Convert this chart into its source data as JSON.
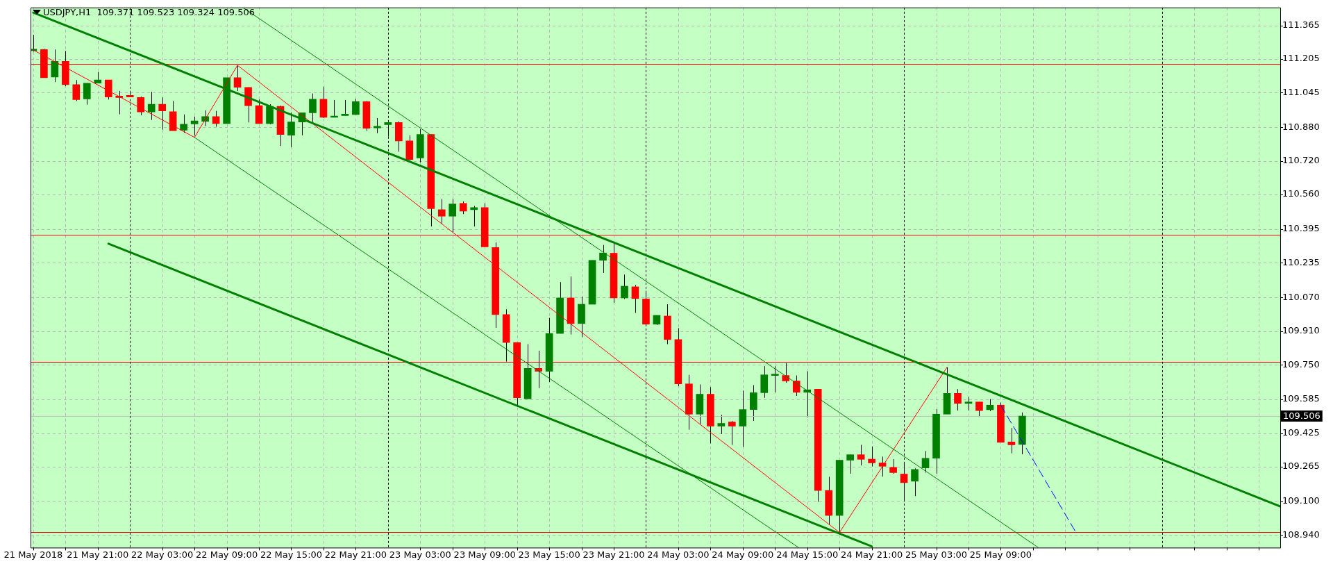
{
  "chart_data": {
    "type": "candlestick",
    "title": "USDJPY,H1  109.371 109.523 109.324 109.506",
    "x": [
      "2018-05-21T15:00",
      "2018-05-21T16:00",
      "2018-05-21T17:00",
      "2018-05-21T18:00",
      "2018-05-21T19:00",
      "2018-05-21T20:00",
      "2018-05-21T21:00",
      "2018-05-21T22:00",
      "2018-05-21T23:00",
      "2018-05-22T00:00",
      "2018-05-22T01:00",
      "2018-05-22T02:00",
      "2018-05-22T03:00",
      "2018-05-22T04:00",
      "2018-05-22T05:00",
      "2018-05-22T06:00",
      "2018-05-22T07:00",
      "2018-05-22T08:00",
      "2018-05-22T09:00",
      "2018-05-22T10:00",
      "2018-05-22T11:00",
      "2018-05-22T12:00",
      "2018-05-22T13:00",
      "2018-05-22T14:00",
      "2018-05-22T15:00",
      "2018-05-22T16:00",
      "2018-05-22T17:00",
      "2018-05-22T18:00",
      "2018-05-22T19:00",
      "2018-05-22T20:00",
      "2018-05-22T21:00",
      "2018-05-22T22:00",
      "2018-05-22T23:00",
      "2018-05-23T00:00",
      "2018-05-23T01:00",
      "2018-05-23T02:00",
      "2018-05-23T03:00",
      "2018-05-23T04:00",
      "2018-05-23T05:00",
      "2018-05-23T06:00",
      "2018-05-23T07:00",
      "2018-05-23T08:00",
      "2018-05-23T09:00",
      "2018-05-23T10:00",
      "2018-05-23T11:00",
      "2018-05-23T12:00",
      "2018-05-23T13:00",
      "2018-05-23T14:00",
      "2018-05-23T15:00",
      "2018-05-23T16:00",
      "2018-05-23T17:00",
      "2018-05-23T18:00",
      "2018-05-23T19:00",
      "2018-05-23T20:00",
      "2018-05-23T21:00",
      "2018-05-23T22:00",
      "2018-05-23T23:00",
      "2018-05-24T00:00",
      "2018-05-24T01:00",
      "2018-05-24T02:00",
      "2018-05-24T03:00",
      "2018-05-24T04:00",
      "2018-05-24T05:00",
      "2018-05-24T06:00",
      "2018-05-24T07:00",
      "2018-05-24T08:00",
      "2018-05-24T09:00",
      "2018-05-24T10:00",
      "2018-05-24T11:00",
      "2018-05-24T12:00",
      "2018-05-24T13:00",
      "2018-05-24T14:00",
      "2018-05-24T15:00",
      "2018-05-24T16:00",
      "2018-05-24T17:00",
      "2018-05-24T18:00",
      "2018-05-24T19:00",
      "2018-05-24T20:00",
      "2018-05-24T21:00",
      "2018-05-24T22:00",
      "2018-05-24T23:00",
      "2018-05-25T00:00",
      "2018-05-25T01:00",
      "2018-05-25T02:00",
      "2018-05-25T03:00",
      "2018-05-25T04:00",
      "2018-05-25T05:00",
      "2018-05-25T06:00",
      "2018-05-25T07:00",
      "2018-05-25T08:00",
      "2018-05-25T09:00",
      "2018-05-25T10:00",
      "2018-05-25T11:00"
    ],
    "ohlc": [
      [
        111.245,
        111.32,
        111.24,
        111.25
      ],
      [
        111.25,
        111.253,
        111.116,
        111.116
      ],
      [
        111.119,
        111.25,
        111.095,
        111.194
      ],
      [
        111.194,
        111.243,
        111.076,
        111.083
      ],
      [
        111.083,
        111.105,
        111.005,
        111.012
      ],
      [
        111.015,
        111.09,
        110.988,
        111.09
      ],
      [
        111.09,
        111.143,
        111.09,
        111.105
      ],
      [
        111.105,
        111.105,
        111.012,
        111.024
      ],
      [
        111.026,
        111.053,
        110.942,
        111.022
      ],
      [
        111.032,
        111.046,
        111.024,
        111.024
      ],
      [
        111.022,
        111.026,
        110.937,
        110.953
      ],
      [
        110.953,
        111.049,
        110.915,
        110.99
      ],
      [
        110.99,
        111.022,
        110.869,
        110.958
      ],
      [
        110.954,
        111.005,
        110.864,
        110.864
      ],
      [
        110.866,
        110.941,
        110.854,
        110.895
      ],
      [
        110.896,
        110.931,
        110.841,
        110.91
      ],
      [
        110.908,
        110.961,
        110.886,
        110.931
      ],
      [
        110.931,
        110.958,
        110.883,
        110.898
      ],
      [
        110.898,
        111.116,
        110.898,
        111.116
      ],
      [
        111.116,
        111.175,
        111.053,
        111.07
      ],
      [
        111.07,
        111.07,
        110.903,
        110.983
      ],
      [
        110.983,
        111.012,
        110.898,
        110.898
      ],
      [
        110.898,
        110.99,
        110.895,
        110.98
      ],
      [
        110.98,
        110.983,
        110.791,
        110.846
      ],
      [
        110.842,
        110.951,
        110.786,
        110.905
      ],
      [
        110.905,
        110.949,
        110.842,
        110.949
      ],
      [
        110.949,
        111.041,
        110.905,
        111.014
      ],
      [
        111.014,
        111.073,
        110.924,
        110.927
      ],
      [
        110.927,
        111.01,
        110.927,
        110.932
      ],
      [
        110.936,
        111.01,
        110.936,
        110.941
      ],
      [
        110.941,
        111.015,
        110.941,
        111.002
      ],
      [
        111.002,
        111.005,
        110.863,
        110.875
      ],
      [
        110.877,
        110.924,
        110.852,
        110.885
      ],
      [
        110.893,
        110.903,
        110.836,
        110.903
      ],
      [
        110.903,
        110.908,
        110.764,
        110.815
      ],
      [
        110.815,
        110.842,
        110.717,
        110.727
      ],
      [
        110.734,
        110.871,
        110.713,
        110.846
      ],
      [
        110.846,
        110.846,
        110.408,
        110.493
      ],
      [
        110.488,
        110.539,
        110.423,
        110.457
      ],
      [
        110.457,
        110.539,
        110.381,
        110.515
      ],
      [
        110.518,
        110.527,
        110.467,
        110.481
      ],
      [
        110.488,
        110.506,
        110.408,
        110.498
      ],
      [
        110.498,
        110.518,
        110.311,
        110.311
      ],
      [
        110.308,
        110.332,
        109.926,
        109.989
      ],
      [
        109.989,
        110.014,
        109.765,
        109.856
      ],
      [
        109.856,
        109.856,
        109.551,
        109.593
      ],
      [
        109.588,
        109.848,
        109.588,
        109.733
      ],
      [
        109.733,
        109.817,
        109.639,
        109.719
      ],
      [
        109.719,
        109.973,
        109.668,
        109.899
      ],
      [
        109.899,
        110.143,
        109.899,
        110.068
      ],
      [
        110.068,
        110.17,
        109.894,
        109.946
      ],
      [
        109.946,
        110.075,
        109.882,
        110.038
      ],
      [
        110.038,
        110.247,
        110.038,
        110.247
      ],
      [
        110.247,
        110.32,
        110.187,
        110.282
      ],
      [
        110.281,
        110.326,
        110.045,
        110.068
      ],
      [
        110.068,
        110.179,
        110.063,
        110.124
      ],
      [
        110.121,
        110.13,
        109.997,
        110.065
      ],
      [
        110.063,
        110.096,
        109.933,
        109.943
      ],
      [
        109.943,
        109.985,
        109.939,
        109.985
      ],
      [
        109.982,
        110.038,
        109.848,
        109.87
      ],
      [
        109.87,
        109.924,
        109.648,
        109.659
      ],
      [
        109.659,
        109.702,
        109.441,
        109.515
      ],
      [
        109.515,
        109.656,
        109.466,
        109.61
      ],
      [
        109.61,
        109.644,
        109.376,
        109.458
      ],
      [
        109.458,
        109.512,
        109.42,
        109.471
      ],
      [
        109.478,
        109.483,
        109.369,
        109.458
      ],
      [
        109.458,
        109.627,
        109.359,
        109.537
      ],
      [
        109.537,
        109.653,
        109.483,
        109.617
      ],
      [
        109.617,
        109.743,
        109.593,
        109.702
      ],
      [
        109.699,
        109.743,
        109.619,
        109.701
      ],
      [
        109.699,
        109.758,
        109.665,
        109.673
      ],
      [
        109.673,
        109.699,
        109.602,
        109.619
      ],
      [
        109.619,
        109.719,
        109.5,
        109.631
      ],
      [
        109.634,
        109.634,
        109.098,
        109.152
      ],
      [
        109.152,
        109.217,
        108.989,
        109.033
      ],
      [
        109.033,
        109.296,
        108.952,
        109.296
      ],
      [
        109.296,
        109.322,
        109.232,
        109.322
      ],
      [
        109.322,
        109.369,
        109.271,
        109.3
      ],
      [
        109.301,
        109.361,
        109.266,
        109.283
      ],
      [
        109.283,
        109.313,
        109.218,
        109.267
      ],
      [
        109.262,
        109.301,
        109.232,
        109.237
      ],
      [
        109.23,
        109.288,
        109.1,
        109.189
      ],
      [
        109.196,
        109.257,
        109.125,
        109.252
      ],
      [
        109.259,
        109.339,
        109.237,
        109.305
      ],
      [
        109.305,
        109.539,
        109.232,
        109.515
      ],
      [
        109.515,
        109.738,
        109.515,
        109.614
      ],
      [
        109.614,
        109.634,
        109.532,
        109.566
      ],
      [
        109.566,
        109.598,
        109.532,
        109.573
      ],
      [
        109.573,
        109.573,
        109.502,
        109.532
      ],
      [
        109.536,
        109.587,
        109.529,
        109.558
      ],
      [
        109.558,
        109.57,
        109.381,
        109.381
      ],
      [
        109.383,
        109.449,
        109.329,
        109.369
      ],
      [
        109.371,
        109.523,
        109.324,
        109.506
      ]
    ],
    "colors": [
      "#008000",
      "#ff0000",
      "#008000",
      "#ff0000",
      "#ff0000",
      "#008000",
      "#008000",
      "#ff0000",
      "#ff0000",
      "#ff0000",
      "#ff0000",
      "#008000",
      "#ff0000",
      "#ff0000",
      "#008000",
      "#008000",
      "#008000",
      "#ff0000",
      "#008000",
      "#ff0000",
      "#ff0000",
      "#ff0000",
      "#008000",
      "#ff0000",
      "#008000",
      "#008000",
      "#008000",
      "#ff0000",
      "#008000",
      "#008000",
      "#008000",
      "#ff0000",
      "#008000",
      "#008000",
      "#ff0000",
      "#ff0000",
      "#008000",
      "#ff0000",
      "#ff0000",
      "#008000",
      "#ff0000",
      "#008000",
      "#ff0000",
      "#ff0000",
      "#ff0000",
      "#ff0000",
      "#008000",
      "#ff0000",
      "#008000",
      "#008000",
      "#ff0000",
      "#008000",
      "#008000",
      "#008000",
      "#ff0000",
      "#008000",
      "#ff0000",
      "#ff0000",
      "#008000",
      "#ff0000",
      "#ff0000",
      "#ff0000",
      "#008000",
      "#ff0000",
      "#008000",
      "#ff0000",
      "#008000",
      "#008000",
      "#008000",
      "#008000",
      "#ff0000",
      "#ff0000",
      "#008000",
      "#ff0000",
      "#ff0000",
      "#008000",
      "#008000",
      "#ff0000",
      "#ff0000",
      "#ff0000",
      "#ff0000",
      "#ff0000",
      "#008000",
      "#008000",
      "#008000",
      "#008000",
      "#ff0000",
      "#008000",
      "#ff0000",
      "#008000",
      "#ff0000",
      "#ff0000",
      "#008000"
    ],
    "series": [
      {
        "type": "line",
        "color": "#008000",
        "x": [
          "2018-05-21T15:00",
          "2018-05-26T11:00"
        ],
        "values": [
          111.426,
          109.076
        ]
      },
      {
        "type": "line",
        "color": "#008000",
        "x": [
          "2018-05-21T22:00",
          "2018-05-24T21:00"
        ],
        "values": [
          110.326,
          108.886
        ]
      },
      {
        "type": "line",
        "color": "#008000",
        "x": [
          "2018-05-22T10:30",
          "2018-05-25T12:30"
        ],
        "values": [
          111.45,
          108.88
        ]
      },
      {
        "type": "line",
        "color": "#008000",
        "x": [
          "2018-05-22T06:00",
          "2018-05-24T14:12"
        ],
        "values": [
          110.832,
          108.88
        ]
      },
      {
        "type": "line",
        "color": "#ff0000",
        "x": [
          "2018-05-21T15:00",
          "2018-05-22T06:00",
          "2018-05-22T10:00",
          "2018-05-24T18:00",
          "2018-05-25T04:00"
        ],
        "values": [
          111.248,
          110.832,
          111.175,
          108.952,
          109.738
        ]
      },
      {
        "type": "line",
        "color": "#0000ff",
        "line_style": "dashed",
        "x": [
          "2018-05-25T09:00",
          "2018-05-25T16:00"
        ],
        "values": [
          109.558,
          108.952
        ]
      }
    ],
    "marker": "none",
    "xlim": [
      "2018-05-21T14:45",
      "2018-05-26T11:00"
    ],
    "xticks": [
      {
        "value": "2018-05-21T15:00",
        "label": "21 May 2018"
      },
      {
        "value": "2018-05-21T18:00",
        "label": null
      },
      {
        "value": "2018-05-21T21:00",
        "label": "21 May 21:00"
      },
      {
        "value": "2018-05-22T03:00",
        "label": "22 May 03:00"
      },
      {
        "value": "2018-05-22T06:00",
        "label": null
      },
      {
        "value": "2018-05-22T09:00",
        "label": "22 May 09:00"
      },
      {
        "value": "2018-05-22T12:00",
        "label": null
      },
      {
        "value": "2018-05-22T15:00",
        "label": "22 May 15:00"
      },
      {
        "value": "2018-05-22T18:00",
        "label": null
      },
      {
        "value": "2018-05-22T21:00",
        "label": "22 May 21:00"
      },
      {
        "value": "2018-05-23T03:00",
        "label": "23 May 03:00"
      },
      {
        "value": "2018-05-23T06:00",
        "label": null
      },
      {
        "value": "2018-05-23T09:00",
        "label": "23 May 09:00"
      },
      {
        "value": "2018-05-23T12:00",
        "label": null
      },
      {
        "value": "2018-05-23T15:00",
        "label": "23 May 15:00"
      },
      {
        "value": "2018-05-23T18:00",
        "label": null
      },
      {
        "value": "2018-05-23T21:00",
        "label": "23 May 21:00"
      },
      {
        "value": "2018-05-24T03:00",
        "label": "24 May 03:00"
      },
      {
        "value": "2018-05-24T06:00",
        "label": null
      },
      {
        "value": "2018-05-24T09:00",
        "label": "24 May 09:00"
      },
      {
        "value": "2018-05-24T12:00",
        "label": null
      },
      {
        "value": "2018-05-24T15:00",
        "label": "24 May 15:00"
      },
      {
        "value": "2018-05-24T18:00",
        "label": null
      },
      {
        "value": "2018-05-24T21:00",
        "label": "24 May 21:00"
      },
      {
        "value": "2018-05-25T03:00",
        "label": "25 May 03:00"
      },
      {
        "value": "2018-05-25T06:00",
        "label": null
      },
      {
        "value": "2018-05-25T09:00",
        "label": "25 May 09:00"
      },
      {
        "value": "2018-05-25T12:00",
        "label": null
      },
      {
        "value": "2018-05-25T15:00",
        "label": null
      },
      {
        "value": "2018-05-25T18:00",
        "label": null
      },
      {
        "value": "2018-05-25T21:00",
        "label": null
      },
      {
        "value": "2018-05-26T03:00",
        "label": null
      },
      {
        "value": "2018-05-26T06:00",
        "label": null
      },
      {
        "value": "2018-05-26T09:00",
        "label": null
      }
    ],
    "ylim": [
      108.88,
      111.45
    ],
    "yticks": [
      {
        "value": 108.94,
        "label": "108.940"
      },
      {
        "value": 109.1,
        "label": "109.100"
      },
      109.265,
      109.425,
      109.585,
      {
        "value": 109.75,
        "label": "109.750"
      },
      {
        "value": 109.91,
        "label": "109.910"
      },
      {
        "value": 110.07,
        "label": "110.070"
      },
      110.235,
      110.395,
      {
        "value": 110.56,
        "label": "110.560"
      },
      {
        "value": 110.72,
        "label": "110.720"
      },
      {
        "value": 110.88,
        "label": "110.880"
      },
      111.045,
      111.205,
      111.365
    ],
    "ref_lines": [
      {
        "axis": "y",
        "value": 111.182,
        "color": "#ff0000"
      },
      {
        "axis": "y",
        "value": 110.369,
        "color": "#ff0000"
      },
      {
        "axis": "y",
        "value": 109.765,
        "color": "#ff0000"
      },
      {
        "axis": "y",
        "value": 108.955,
        "color": "#ff0000"
      },
      {
        "axis": "y",
        "value": 109.506,
        "color": "#c0c0c0",
        "label": "109.506"
      },
      {
        "axis": "x",
        "value": "2018-05-22T00:00",
        "color": "#000000",
        "line_style": "dotted"
      },
      {
        "axis": "x",
        "value": "2018-05-23T00:00",
        "color": "#000000",
        "line_style": "dotted"
      },
      {
        "axis": "x",
        "value": "2018-05-24T00:00",
        "color": "#000000",
        "line_style": "dotted"
      },
      {
        "axis": "x",
        "value": "2018-05-25T00:00",
        "color": "#000000",
        "line_style": "dotted"
      },
      {
        "axis": "x",
        "value": "2018-05-26T00:00",
        "color": "#000000",
        "line_style": "dotted"
      }
    ],
    "grid": true,
    "legend": false
  }
}
